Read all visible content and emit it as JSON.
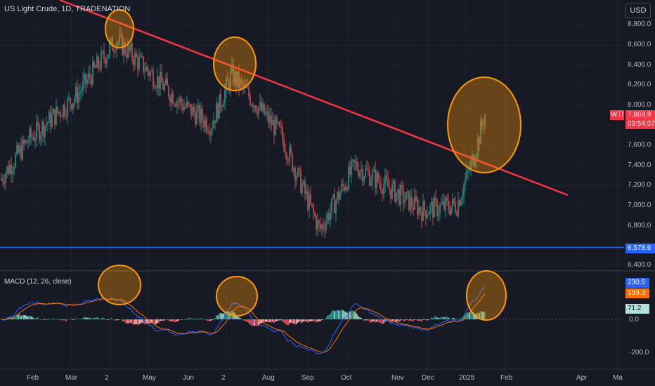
{
  "header": {
    "symbol_title": "US Light Crude, 1D, TRADENATION"
  },
  "currency_button": {
    "label": "USD"
  },
  "price_axis": {
    "ticks": [
      "8,800.0",
      "8,600.0",
      "8,400.0",
      "8,200.0",
      "8,000.0",
      "7,600.0",
      "7,400.0",
      "7,200.0",
      "7,000.0",
      "6,800.0",
      "6,400.0"
    ]
  },
  "price_tag": {
    "symbol": "WTI",
    "price": "7,908.9",
    "countdown": "09:54:07",
    "color": "#f23645"
  },
  "support_tag": {
    "price": "6,578.6",
    "color": "#2962ff"
  },
  "macd": {
    "title": "MACD (12, 26, close)",
    "macd_value": "230.5",
    "signal_value": "159.3",
    "hist_value": "71.2",
    "axis_ticks": [
      "0.0",
      "-200.0"
    ],
    "colors": {
      "macd": "#2962ff",
      "signal": "#ff6d00",
      "hist": "#b2dfdb"
    }
  },
  "time_axis": {
    "labels": [
      "Feb",
      "Mar",
      "2",
      "May",
      "Jun",
      "2",
      "Aug",
      "Sep",
      "Oct",
      "Nov",
      "Dec",
      "2025",
      "Feb",
      "Apr",
      "Ma"
    ]
  },
  "colors": {
    "background": "#161a25",
    "up": "#26a69a",
    "down": "#ef5350",
    "trendline": "#f23645",
    "support": "#2962ff",
    "highlight": "#ff9800"
  },
  "chart_data": {
    "type": "candlestick",
    "price_range": [
      6400,
      8900
    ],
    "approx_close_path": [
      [
        "Jan",
        7250
      ],
      [
        "Feb",
        7650
      ],
      [
        "Mar",
        8100
      ],
      [
        "Apr",
        8650
      ],
      [
        "May",
        8000
      ],
      [
        "Jun",
        7800
      ],
      [
        "Jul",
        8300
      ],
      [
        "Aug",
        7700
      ],
      [
        "Sep",
        6750
      ],
      [
        "Oct",
        7400
      ],
      [
        "Nov",
        6950
      ],
      [
        "Dec",
        7000
      ],
      [
        "2025",
        7500
      ],
      [
        "Jan 15",
        7908.9
      ]
    ],
    "last_price": 7908.9,
    "support_level": 6578.6,
    "trendline": {
      "from_price": 9100,
      "to_price": 7100
    },
    "macd_last": {
      "macd": 230.5,
      "signal": 159.3,
      "histogram": 71.2
    }
  }
}
